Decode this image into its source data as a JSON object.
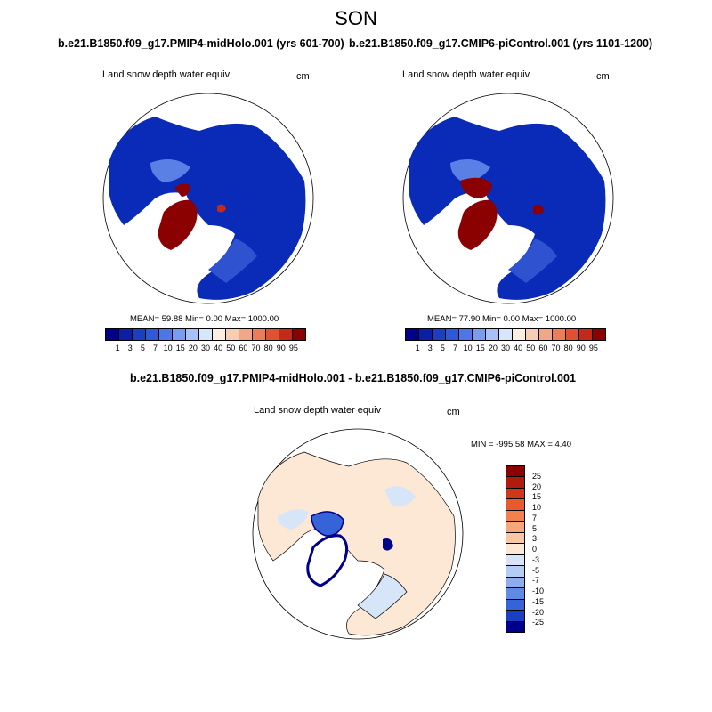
{
  "season": "SON",
  "panels": [
    {
      "title": "b.e21.B1850.f09_g17.PMIP4-midHolo.001 (yrs 601-700)",
      "variable": "Land snow depth water equiv",
      "units": "cm",
      "stats": "MEAN=  59.88  Min=   0.00  Max= 1000.00"
    },
    {
      "title": "b.e21.B1850.f09_g17.CMIP6-piControl.001 (yrs 1101-1200)",
      "variable": "Land snow depth water equiv",
      "units": "cm",
      "stats": "MEAN=  77.90  Min=   0.00  Max= 1000.00"
    }
  ],
  "diff_panel": {
    "title": "b.e21.B1850.f09_g17.PMIP4-midHolo.001 - b.e21.B1850.f09_g17.CMIP6-piControl.001",
    "variable": "Land snow depth water equiv",
    "units": "cm",
    "minmax": "MIN = -995.58 MAX =   4.40"
  },
  "chart_data": [
    {
      "type": "heatmap",
      "projection": "north polar stereographic",
      "title": "b.e21.B1850.f09_g17.PMIP4-midHolo.001 (yrs 601-700)",
      "variable": "Land snow depth water equiv",
      "units": "cm",
      "mean": 59.88,
      "min": 0.0,
      "max": 1000.0,
      "colorbar_labels": [
        "1",
        "3",
        "5",
        "7",
        "10",
        "15",
        "20",
        "30",
        "40",
        "50",
        "60",
        "70",
        "80",
        "90",
        "95"
      ],
      "colorbar_colors": [
        "#00008b",
        "#0a1fa6",
        "#1a3fc0",
        "#2e5ad6",
        "#4c78e6",
        "#7a9cf0",
        "#a8c0f6",
        "#d8e6fb",
        "#fdeee2",
        "#f8cdb3",
        "#f3a684",
        "#ec7e57",
        "#de5233",
        "#c42a17",
        "#8b0000"
      ]
    },
    {
      "type": "heatmap",
      "projection": "north polar stereographic",
      "title": "b.e21.B1850.f09_g17.CMIP6-piControl.001 (yrs 1101-1200)",
      "variable": "Land snow depth water equiv",
      "units": "cm",
      "mean": 77.9,
      "min": 0.0,
      "max": 1000.0,
      "colorbar_labels": [
        "1",
        "3",
        "5",
        "7",
        "10",
        "15",
        "20",
        "30",
        "40",
        "50",
        "60",
        "70",
        "80",
        "90",
        "95"
      ],
      "colorbar_colors": [
        "#00008b",
        "#0a1fa6",
        "#1a3fc0",
        "#2e5ad6",
        "#4c78e6",
        "#7a9cf0",
        "#a8c0f6",
        "#d8e6fb",
        "#fdeee2",
        "#f8cdb3",
        "#f3a684",
        "#ec7e57",
        "#de5233",
        "#c42a17",
        "#8b0000"
      ]
    },
    {
      "type": "heatmap",
      "projection": "north polar stereographic",
      "title": "b.e21.B1850.f09_g17.PMIP4-midHolo.001 - b.e21.B1850.f09_g17.CMIP6-piControl.001",
      "variable": "Land snow depth water equiv",
      "units": "cm",
      "min": -995.58,
      "max": 4.4,
      "colorbar_labels": [
        "25",
        "20",
        "15",
        "10",
        "7",
        "5",
        "3",
        "0",
        "-3",
        "-5",
        "-7",
        "-10",
        "-15",
        "-20",
        "-25"
      ],
      "colorbar_colors": [
        "#8b0000",
        "#b01c0c",
        "#d0361a",
        "#e85a2e",
        "#f2814f",
        "#f7a67a",
        "#fac7a5",
        "#fde8d6",
        "#d6e6f8",
        "#b4cdf3",
        "#8cafec",
        "#5f8be4",
        "#3563d8",
        "#1a3fc0",
        "#00008b"
      ]
    }
  ]
}
